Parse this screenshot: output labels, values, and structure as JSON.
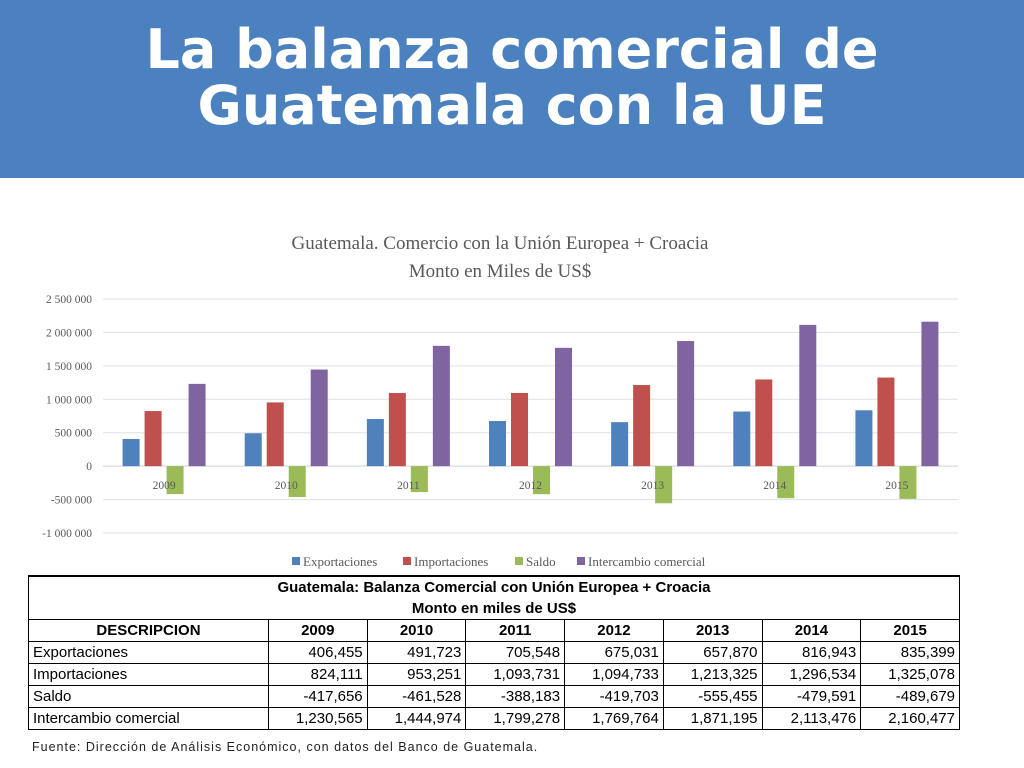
{
  "header": {
    "title_line1": "La balanza comercial de",
    "title_line2": "Guatemala con la UE",
    "background": "#4b81be"
  },
  "chart_data": {
    "type": "bar",
    "title": "Guatemala. Comercio con la Unión Europea + Croacia",
    "subtitle": "Monto en Miles de US$",
    "categories": [
      "2009",
      "2010",
      "2011",
      "2012",
      "2013",
      "2014",
      "2015"
    ],
    "series": [
      {
        "name": "Exportaciones",
        "color": "#4f81bd",
        "values": [
          406455,
          491723,
          705548,
          675031,
          657870,
          816943,
          835399
        ]
      },
      {
        "name": "Importaciones",
        "color": "#c0504d",
        "values": [
          824111,
          953251,
          1093731,
          1094733,
          1213325,
          1296534,
          1325078
        ]
      },
      {
        "name": "Saldo",
        "color": "#9bbb59",
        "values": [
          -417656,
          -461528,
          -388183,
          -419703,
          -555455,
          -479591,
          -489679
        ]
      },
      {
        "name": "Intercambio comercial",
        "color": "#8064a2",
        "values": [
          1230565,
          1444974,
          1799278,
          1769764,
          1871195,
          2113476,
          2160477
        ]
      }
    ],
    "ylim": [
      -1000000,
      2500000
    ],
    "yticks": [
      2500000,
      2000000,
      1500000,
      1000000,
      500000,
      0,
      -500000,
      -1000000
    ],
    "ytick_labels": [
      "2 500 000",
      "2 000 000",
      "1 500 000",
      "1 000 000",
      "500 000",
      "0",
      "-500 000",
      "-1 000 000"
    ],
    "grid": true,
    "legend": "bottom"
  },
  "table": {
    "title_line1": "Guatemala: Balanza Comercial con Unión Europea + Croacia",
    "title_line2": "Monto en miles de US$",
    "header": [
      "DESCRIPCION",
      "2009",
      "2010",
      "2011",
      "2012",
      "2013",
      "2014",
      "2015"
    ],
    "rows": [
      [
        "Exportaciones",
        "406,455",
        "491,723",
        "705,548",
        "675,031",
        "657,870",
        "816,943",
        "835,399"
      ],
      [
        "Importaciones",
        "824,111",
        "953,251",
        "1,093,731",
        "1,094,733",
        "1,213,325",
        "1,296,534",
        "1,325,078"
      ],
      [
        "Saldo",
        "-417,656",
        "-461,528",
        "-388,183",
        "-419,703",
        "-555,455",
        "-479,591",
        "-489,679"
      ],
      [
        "Intercambio comercial",
        "1,230,565",
        "1,444,974",
        "1,799,278",
        "1,769,764",
        "1,871,195",
        "2,113,476",
        "2,160,477"
      ]
    ]
  },
  "source": "Fuente: Dirección de Análisis Económico, con datos del Banco de Guatemala."
}
